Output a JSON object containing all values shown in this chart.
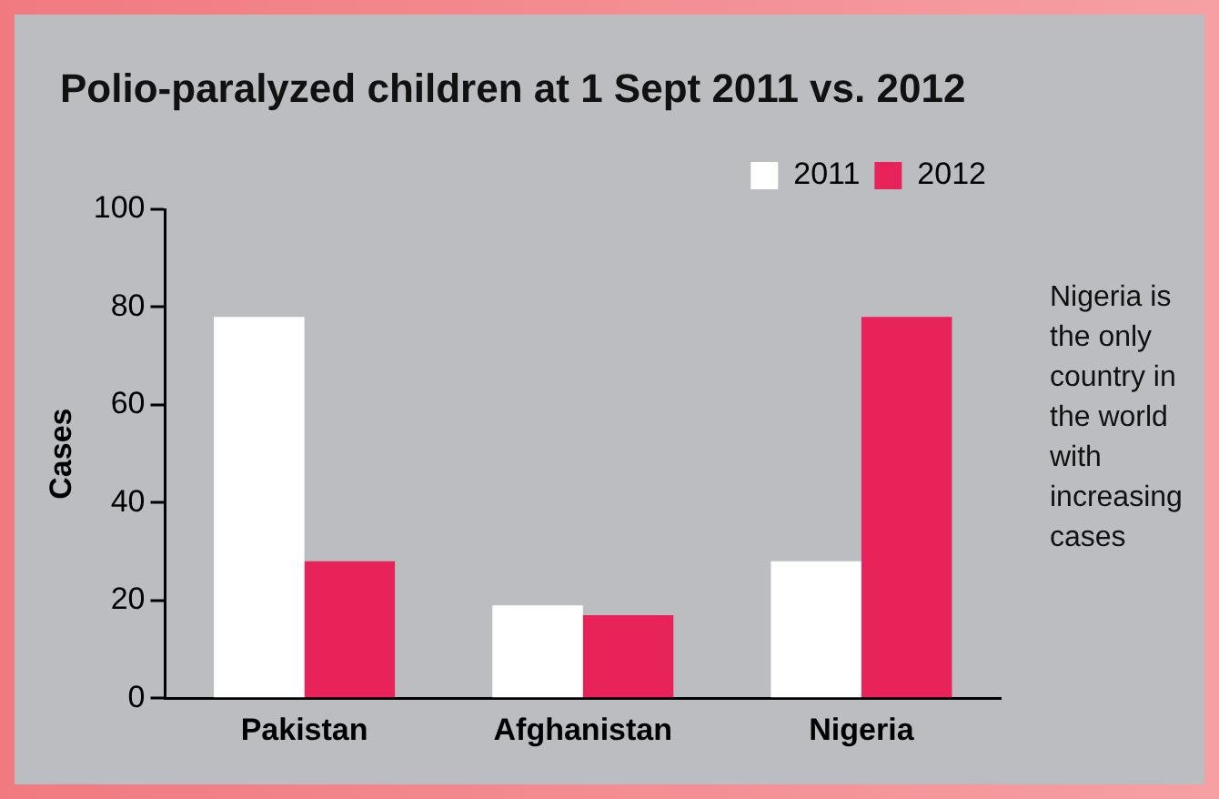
{
  "chart_data": {
    "type": "bar",
    "title": "Polio-paralyzed children at 1 Sept 2011 vs. 2012",
    "ylabel": "Cases",
    "categories": [
      "Pakistan",
      "Afghanistan",
      "Nigeria"
    ],
    "series": [
      {
        "name": "2011",
        "color": "#ffffff",
        "values": [
          78,
          19,
          28
        ]
      },
      {
        "name": "2012",
        "color": "#e8235a",
        "values": [
          28,
          17,
          78
        ]
      }
    ],
    "ylim": [
      0,
      100
    ],
    "yticks": [
      0,
      20,
      40,
      60,
      80,
      100
    ],
    "grid": false,
    "legend": "top right",
    "annotations": [
      "Nigeria is the only country in the world with increasing cases"
    ]
  }
}
